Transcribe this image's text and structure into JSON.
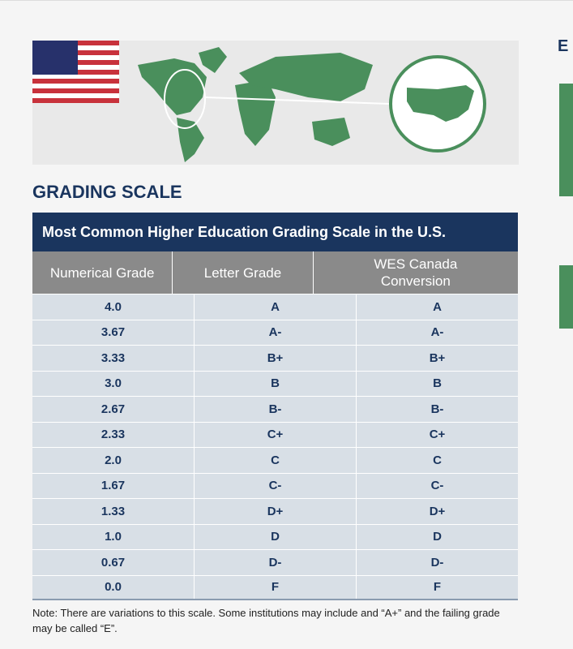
{
  "side_heading": "E",
  "heading": "GRADING SCALE",
  "table": {
    "title": "Most Common Higher Education Grading Scale in the U.S.",
    "columns": [
      "Numerical Grade",
      "Letter Grade",
      "WES Canada Conversion"
    ],
    "rows": [
      [
        "4.0",
        "A",
        "A"
      ],
      [
        "3.67",
        "A-",
        "A-"
      ],
      [
        "3.33",
        "B+",
        "B+"
      ],
      [
        "3.0",
        "B",
        "B"
      ],
      [
        "2.67",
        "B-",
        "B-"
      ],
      [
        "2.33",
        "C+",
        "C+"
      ],
      [
        "2.0",
        "C",
        "C"
      ],
      [
        "1.67",
        "C-",
        "C-"
      ],
      [
        "1.33",
        "D+",
        "D+"
      ],
      [
        "1.0",
        "D",
        "D"
      ],
      [
        "0.67",
        "D-",
        "D-"
      ],
      [
        "0.0",
        "F",
        "F"
      ]
    ]
  },
  "note": "Note: There are variations to this scale. Some institutions may include and “A+” and the failing grade may be called “E”.",
  "colors": {
    "navy": "#1a355e",
    "green": "#4a8f5c",
    "header_gray": "#8a8a8a",
    "row_bg": "#d8dfe6"
  }
}
